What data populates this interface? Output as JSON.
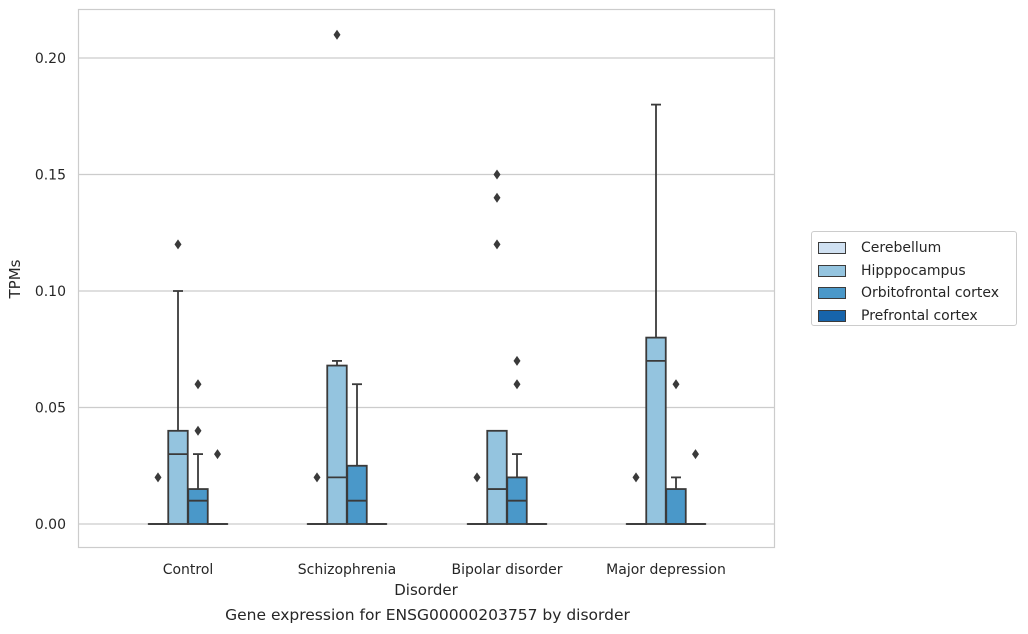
{
  "chart_data": {
    "type": "box",
    "caption": "Gene expression for ENSG00000203757 by disorder",
    "xlabel": "Disorder",
    "ylabel": "TPMs",
    "ylim": [
      -0.01,
      0.22
    ],
    "yticks": [
      0.0,
      0.05,
      0.1,
      0.15,
      0.2
    ],
    "ytick_labels": [
      "0.00",
      "0.05",
      "0.10",
      "0.15",
      "0.20"
    ],
    "categories": [
      "Control",
      "Schizophrenia",
      "Bipolar disorder",
      "Major depression"
    ],
    "grid": true,
    "legend_position": "right",
    "series": [
      {
        "name": "Cerebellum",
        "color": "#d0e1f2",
        "boxes": [
          {
            "q1": 0,
            "median": 0,
            "q3": 0,
            "whislo": 0,
            "whishi": 0,
            "fliers": []
          },
          {
            "q1": 0,
            "median": 0,
            "q3": 0,
            "whislo": 0,
            "whishi": 0,
            "fliers": []
          },
          {
            "q1": 0,
            "median": 0,
            "q3": 0,
            "whislo": 0,
            "whishi": 0,
            "fliers": []
          },
          {
            "q1": 0,
            "median": 0,
            "q3": 0,
            "whislo": 0,
            "whishi": 0,
            "fliers": []
          }
        ]
      },
      {
        "name": "Hipppocampus",
        "color": "#94c4df",
        "boxes": [
          {
            "q1": 0,
            "median": 0.03,
            "q3": 0.04,
            "whislo": 0,
            "whishi": 0.1,
            "fliers": [
              0.12
            ]
          },
          {
            "q1": 0,
            "median": 0.02,
            "q3": 0.068,
            "whislo": 0,
            "whishi": 0.07,
            "fliers": [
              0.21
            ]
          },
          {
            "q1": 0,
            "median": 0.015,
            "q3": 0.04,
            "whislo": 0,
            "whishi": 0.04,
            "fliers": [
              0.12,
              0.14,
              0.15
            ]
          },
          {
            "q1": 0,
            "median": 0.07,
            "q3": 0.08,
            "whislo": 0,
            "whishi": 0.18,
            "fliers": []
          }
        ]
      },
      {
        "name": "Orbitofrontal cortex",
        "color": "#4a98c9",
        "boxes": [
          {
            "q1": 0,
            "median": 0.01,
            "q3": 0.015,
            "whislo": 0,
            "whishi": 0.03,
            "fliers": [
              0.04,
              0.06
            ]
          },
          {
            "q1": 0,
            "median": 0.01,
            "q3": 0.025,
            "whislo": 0,
            "whishi": 0.06,
            "fliers": []
          },
          {
            "q1": 0,
            "median": 0.01,
            "q3": 0.02,
            "whislo": 0,
            "whishi": 0.03,
            "fliers": [
              0.06,
              0.07
            ]
          },
          {
            "q1": 0,
            "median": 0,
            "q3": 0.015,
            "whislo": 0,
            "whishi": 0.02,
            "fliers": [
              0.06
            ]
          }
        ]
      },
      {
        "name": "Prefrontal cortex",
        "color": "#1764ab",
        "boxes": [
          {
            "q1": 0,
            "median": 0,
            "q3": 0,
            "whislo": 0,
            "whishi": 0,
            "fliers": [
              0.03
            ]
          },
          {
            "q1": 0,
            "median": 0,
            "q3": 0,
            "whislo": 0,
            "whishi": 0,
            "fliers": []
          },
          {
            "q1": 0,
            "median": 0,
            "q3": 0,
            "whislo": 0,
            "whishi": 0,
            "fliers": []
          },
          {
            "q1": 0,
            "median": 0,
            "q3": 0,
            "whislo": 0,
            "whishi": 0,
            "fliers": [
              0.03
            ]
          }
        ]
      }
    ],
    "cerebellum_fliers": [
      [
        0.02
      ],
      [
        0.02
      ],
      [
        0.02
      ],
      [
        0.02
      ]
    ]
  }
}
